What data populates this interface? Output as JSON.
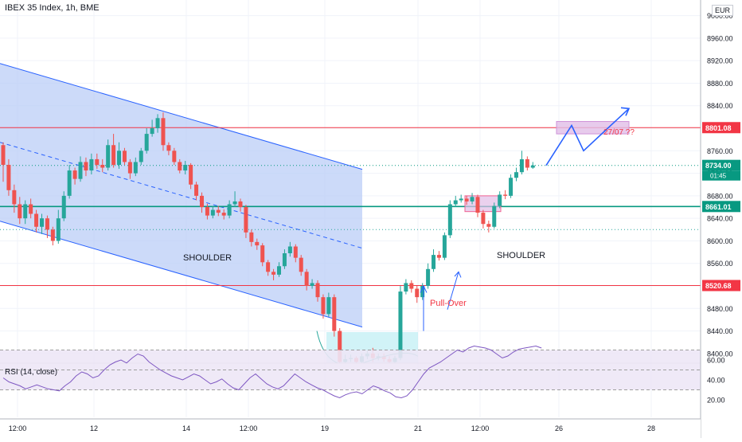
{
  "header": {
    "symbol_title": "IBEX 35 Index, 1h, BME",
    "currency": "EUR"
  },
  "colors": {
    "up": "#26a69a",
    "down": "#ef5350",
    "resistance": "#f23645",
    "support": "#089981",
    "channel_fill": "#bbcdf7",
    "channel_line": "#2962ff",
    "projection": "#2962ff",
    "target_box": "#e1bee7",
    "rsi_line": "#7e57c2",
    "rsi_band": "#ede7f6"
  },
  "annotations": {
    "left_shoulder": "SHOULDER",
    "right_shoulder": "SHOULDER",
    "pullover": "Pull-Over",
    "target_date": "27/07 ??"
  },
  "rsi": {
    "label": "RSI (14, close)",
    "levels": [
      70,
      50,
      30
    ],
    "y_ticks": [
      "60.00",
      "40.00",
      "20.00"
    ],
    "values": [
      42,
      38,
      36,
      34,
      31,
      33,
      35,
      33,
      31,
      30,
      29,
      34,
      38,
      44,
      48,
      46,
      42,
      44,
      50,
      55,
      58,
      60,
      57,
      62,
      66,
      64,
      58,
      54,
      50,
      47,
      44,
      42,
      40,
      43,
      46,
      44,
      40,
      36,
      38,
      41,
      36,
      32,
      30,
      36,
      42,
      46,
      41,
      36,
      33,
      31,
      34,
      40,
      46,
      42,
      38,
      35,
      32,
      30,
      27,
      24,
      22,
      25,
      27,
      28,
      26,
      30,
      34,
      32,
      29,
      27,
      23,
      22,
      24,
      30,
      38,
      46,
      52,
      55,
      58,
      62,
      66,
      70,
      68,
      72,
      74,
      73,
      72,
      70,
      66,
      62,
      64,
      68,
      71,
      72,
      73,
      74,
      72
    ]
  },
  "price_scale": {
    "ticks": [
      "9000.00",
      "8960.00",
      "8920.00",
      "8880.00",
      "8840.00",
      "8800.00",
      "8760.00",
      "8720.00",
      "8680.00",
      "8640.00",
      "8600.00",
      "8560.00",
      "8520.00",
      "8480.00",
      "8440.00",
      "8400.00"
    ],
    "price_labels": [
      {
        "text": "8801.08",
        "kind": "resistance"
      },
      {
        "text": "8734.00",
        "kind": "last"
      },
      {
        "text": "01:45",
        "kind": "countdown"
      },
      {
        "text": "8661.01",
        "kind": "support"
      },
      {
        "text": "8520.68",
        "kind": "resistance"
      }
    ]
  },
  "time_axis": {
    "ticks": [
      "12:00",
      "12",
      "14",
      "12:00",
      "19",
      "21",
      "12:00",
      "26",
      "28"
    ]
  },
  "chart_data": {
    "type": "candlestick",
    "title": "IBEX 35 Index, 1h, BME",
    "y_range": [
      8380,
      9015
    ],
    "y_unit": "EUR",
    "horizontal_levels": [
      {
        "value": 8801.08,
        "kind": "resistance"
      },
      {
        "value": 8661.01,
        "kind": "support"
      },
      {
        "value": 8520.68,
        "kind": "resistance"
      },
      {
        "value": 8734.0,
        "kind": "last price"
      }
    ],
    "candles": [
      [
        8770,
        8735,
        8775,
        8705
      ],
      [
        8735,
        8690,
        8745,
        8680
      ],
      [
        8690,
        8665,
        8700,
        8650
      ],
      [
        8665,
        8640,
        8678,
        8630
      ],
      [
        8640,
        8665,
        8672,
        8630
      ],
      [
        8665,
        8648,
        8675,
        8640
      ],
      [
        8648,
        8625,
        8655,
        8615
      ],
      [
        8625,
        8640,
        8648,
        8612
      ],
      [
        8640,
        8620,
        8645,
        8605
      ],
      [
        8620,
        8600,
        8625,
        8592
      ],
      [
        8600,
        8640,
        8655,
        8595
      ],
      [
        8640,
        8680,
        8688,
        8635
      ],
      [
        8680,
        8725,
        8735,
        8675
      ],
      [
        8725,
        8710,
        8730,
        8700
      ],
      [
        8710,
        8740,
        8750,
        8705
      ],
      [
        8740,
        8725,
        8748,
        8715
      ],
      [
        8725,
        8745,
        8755,
        8718
      ],
      [
        8745,
        8735,
        8755,
        8728
      ],
      [
        8735,
        8730,
        8745,
        8722
      ],
      [
        8730,
        8770,
        8780,
        8725
      ],
      [
        8770,
        8735,
        8790,
        8730
      ],
      [
        8735,
        8760,
        8775,
        8728
      ],
      [
        8760,
        8740,
        8765,
        8735
      ],
      [
        8740,
        8720,
        8745,
        8710
      ],
      [
        8720,
        8740,
        8748,
        8715
      ],
      [
        8740,
        8760,
        8765,
        8735
      ],
      [
        8760,
        8790,
        8800,
        8755
      ],
      [
        8790,
        8800,
        8815,
        8785
      ],
      [
        8800,
        8818,
        8825,
        8792
      ],
      [
        8818,
        8770,
        8828,
        8760
      ],
      [
        8770,
        8760,
        8775,
        8752
      ],
      [
        8760,
        8740,
        8765,
        8735
      ],
      [
        8740,
        8725,
        8745,
        8720
      ],
      [
        8725,
        8735,
        8742,
        8718
      ],
      [
        8735,
        8700,
        8738,
        8692
      ],
      [
        8700,
        8680,
        8705,
        8672
      ],
      [
        8680,
        8660,
        8686,
        8650
      ],
      [
        8660,
        8645,
        8666,
        8638
      ],
      [
        8645,
        8655,
        8662,
        8640
      ],
      [
        8655,
        8650,
        8662,
        8644
      ],
      [
        8650,
        8645,
        8656,
        8638
      ],
      [
        8645,
        8665,
        8672,
        8640
      ],
      [
        8665,
        8670,
        8688,
        8660
      ],
      [
        8670,
        8660,
        8675,
        8652
      ],
      [
        8660,
        8615,
        8664,
        8605
      ],
      [
        8615,
        8598,
        8620,
        8590
      ],
      [
        8598,
        8592,
        8604,
        8584
      ],
      [
        8592,
        8562,
        8596,
        8555
      ],
      [
        8562,
        8545,
        8566,
        8538
      ],
      [
        8545,
        8540,
        8550,
        8530
      ],
      [
        8540,
        8555,
        8562,
        8536
      ],
      [
        8555,
        8578,
        8585,
        8550
      ],
      [
        8578,
        8590,
        8598,
        8572
      ],
      [
        8590,
        8570,
        8594,
        8562
      ],
      [
        8570,
        8545,
        8575,
        8538
      ],
      [
        8545,
        8520,
        8550,
        8512
      ],
      [
        8520,
        8525,
        8532,
        8515
      ],
      [
        8525,
        8500,
        8530,
        8492
      ],
      [
        8500,
        8470,
        8505,
        8462
      ],
      [
        8470,
        8500,
        8508,
        8465
      ],
      [
        8500,
        8440,
        8505,
        8430
      ],
      [
        8440,
        8385,
        8445,
        8378
      ],
      [
        8385,
        8390,
        8398,
        8380
      ],
      [
        8390,
        8392,
        8398,
        8385
      ],
      [
        8392,
        8385,
        8395,
        8380
      ],
      [
        8385,
        8395,
        8400,
        8380
      ],
      [
        8395,
        8400,
        8405,
        8390
      ],
      [
        8400,
        8392,
        8410,
        8385
      ],
      [
        8392,
        8395,
        8400,
        8388
      ],
      [
        8395,
        8390,
        8400,
        8385
      ],
      [
        8390,
        8385,
        8395,
        8380
      ],
      [
        8385,
        8392,
        8396,
        8380
      ],
      [
        8392,
        8510,
        8520,
        8388
      ],
      [
        8510,
        8525,
        8532,
        8505
      ],
      [
        8525,
        8515,
        8530,
        8508
      ],
      [
        8515,
        8500,
        8520,
        8490
      ],
      [
        8500,
        8520,
        8525,
        8495
      ],
      [
        8520,
        8550,
        8560,
        8515
      ],
      [
        8550,
        8575,
        8585,
        8545
      ],
      [
        8575,
        8570,
        8582,
        8565
      ],
      [
        8570,
        8610,
        8615,
        8566
      ],
      [
        8610,
        8665,
        8672,
        8605
      ],
      [
        8665,
        8672,
        8680,
        8660
      ],
      [
        8672,
        8675,
        8682,
        8668
      ],
      [
        8675,
        8670,
        8680,
        8664
      ],
      [
        8670,
        8678,
        8685,
        8665
      ],
      [
        8678,
        8650,
        8682,
        8642
      ],
      [
        8650,
        8630,
        8655,
        8622
      ],
      [
        8630,
        8625,
        8636,
        8615
      ],
      [
        8625,
        8662,
        8668,
        8622
      ],
      [
        8662,
        8682,
        8688,
        8658
      ],
      [
        8682,
        8680,
        8690,
        8674
      ],
      [
        8680,
        8712,
        8718,
        8676
      ],
      [
        8712,
        8722,
        8730,
        8706
      ],
      [
        8722,
        8745,
        8760,
        8718
      ],
      [
        8745,
        8730,
        8750,
        8725
      ],
      [
        8730,
        8734,
        8740,
        8728
      ]
    ],
    "channel": {
      "upper_start": 8915,
      "upper_end": 8727,
      "lower_start": 8635,
      "lower_end": 8447,
      "start_candle": 0,
      "end_candle": 60
    },
    "target_zone": {
      "from": 8790,
      "to": 8812
    },
    "projection_path": [
      8734,
      8805,
      8760,
      8835
    ]
  }
}
